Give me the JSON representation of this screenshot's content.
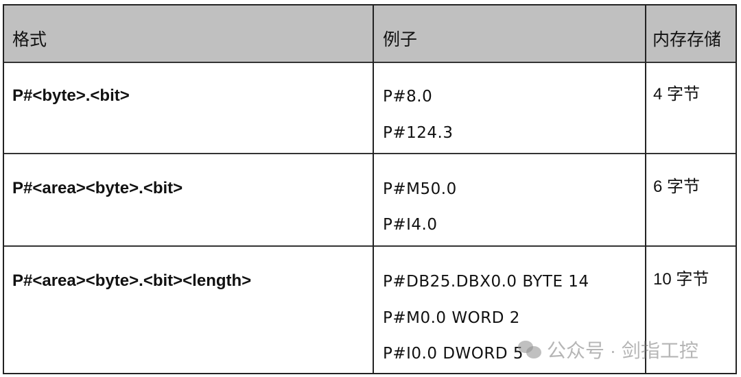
{
  "table": {
    "headers": [
      "格式",
      "例子",
      "内存存储"
    ],
    "rows": [
      {
        "format": "P#<byte>.<bit>",
        "examples": [
          "P#8.0",
          "P#124.3"
        ],
        "storage": "4 字节"
      },
      {
        "format": "P#<area><byte>.<bit>",
        "examples": [
          "P#M50.0",
          "P#I4.0"
        ],
        "storage": "6 字节"
      },
      {
        "format": "P#<area><byte>.<bit><length>",
        "examples": [
          "P#DB25.DBX0.0 BYTE 14",
          "P#M0.0 WORD 2",
          "P#I0.0 DWORD 5"
        ],
        "storage": "10 字节"
      }
    ],
    "header_bg": "#c0c0c0"
  },
  "watermark": {
    "icon": "wechat-icon",
    "text": "公众号 · 剑指工控"
  }
}
